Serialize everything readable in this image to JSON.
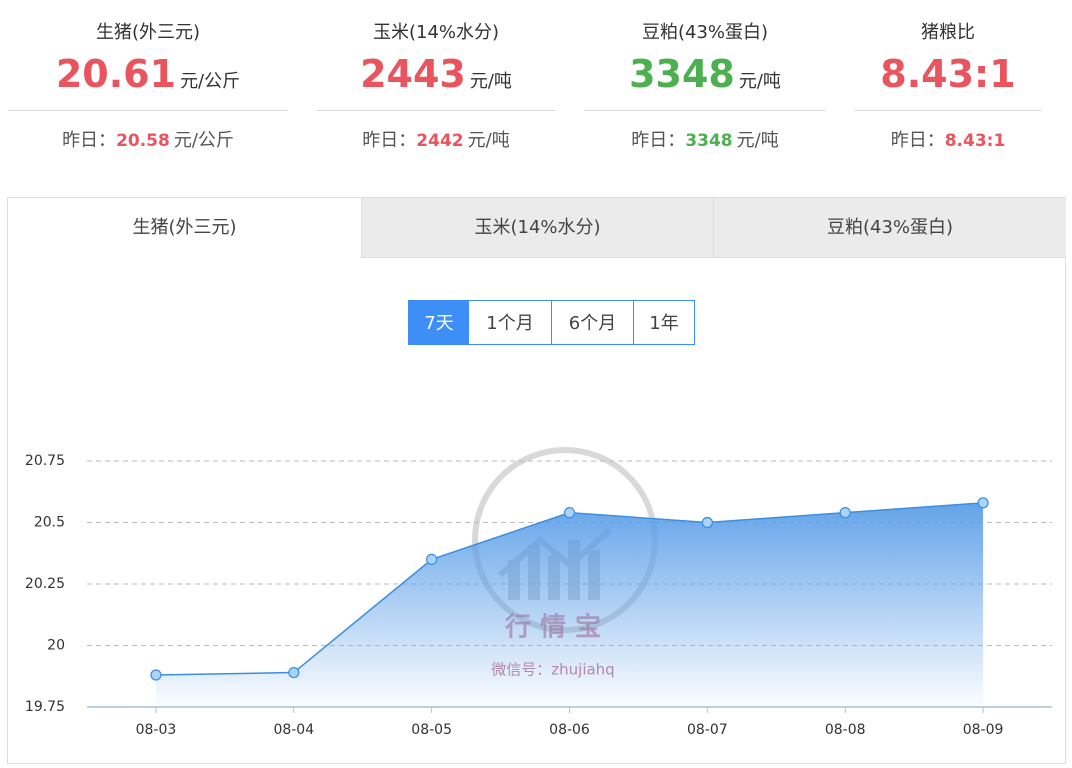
{
  "stats": [
    {
      "name": "生猪(外三元)",
      "value": 20.61,
      "unit": "元/公斤",
      "yesterday": 20.58,
      "color": "#e9545e"
    },
    {
      "name": "玉米(14%水分)",
      "value": 2443,
      "unit": "元/吨",
      "yesterday": 2442,
      "color": "#e9545e"
    },
    {
      "name": "豆粕(43%蛋白)",
      "value": 3348,
      "unit": "元/吨",
      "yesterday": 3348,
      "color": "#4caf50"
    },
    {
      "name": "猪粮比",
      "value": "8.43:1",
      "yesterday": "8.43:1",
      "color": "#e9545e"
    }
  ],
  "yesterday_label": "昨日：",
  "tabs": [
    "生猪(外三元)",
    "玉米(14%水分)",
    "豆粕(43%蛋白)"
  ],
  "active_tab": 0,
  "ranges": [
    "7天",
    "1个月",
    "6个月",
    "1年"
  ],
  "active_range": 0,
  "watermark": {
    "brand": "行 情 宝",
    "wechat": "微信号：zhujiahq"
  },
  "chart_data": {
    "type": "area",
    "categories": [
      "08-03",
      "08-04",
      "08-05",
      "08-06",
      "08-07",
      "08-08",
      "08-09"
    ],
    "values": [
      19.88,
      19.89,
      20.35,
      20.54,
      20.5,
      20.54,
      20.58
    ],
    "color": "#3b8ee0",
    "ylim": [
      19.75,
      20.75
    ],
    "yticks": [
      19.75,
      20,
      20.25,
      20.5,
      20.75
    ],
    "grid": true
  }
}
